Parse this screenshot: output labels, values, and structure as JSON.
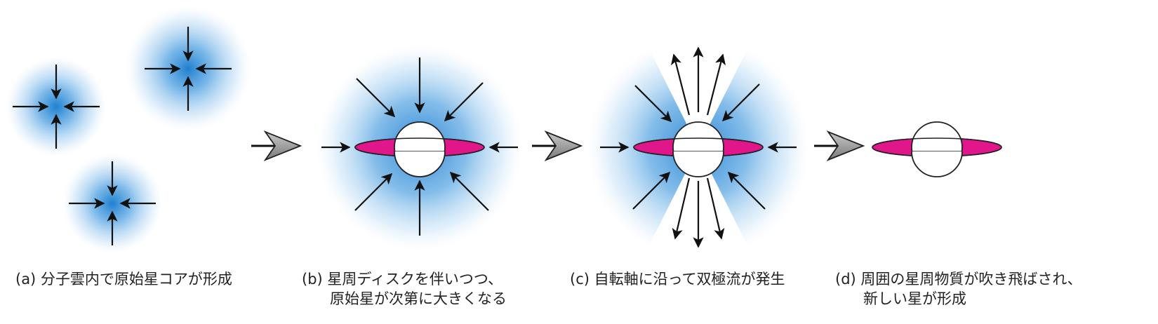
{
  "captions": {
    "a": {
      "lines": [
        "(a) 分子雲内で原始星コアが形成"
      ]
    },
    "b": {
      "lines": [
        "(b) 星周ディスクを伴いつつ、",
        "原始星が次第に大きくなる"
      ]
    },
    "c": {
      "lines": [
        "(c) 自転軸に沿って双極流が発生"
      ]
    },
    "d": {
      "lines": [
        "(d) 周囲の星周物質が吹き飛ばされ、",
        "新しい星が形成"
      ]
    }
  },
  "colors": {
    "cloud_core": "#1f7fd0",
    "disk": "#e0168a",
    "arrow": "#111111",
    "transition_arrow": "#9a9a9a"
  }
}
